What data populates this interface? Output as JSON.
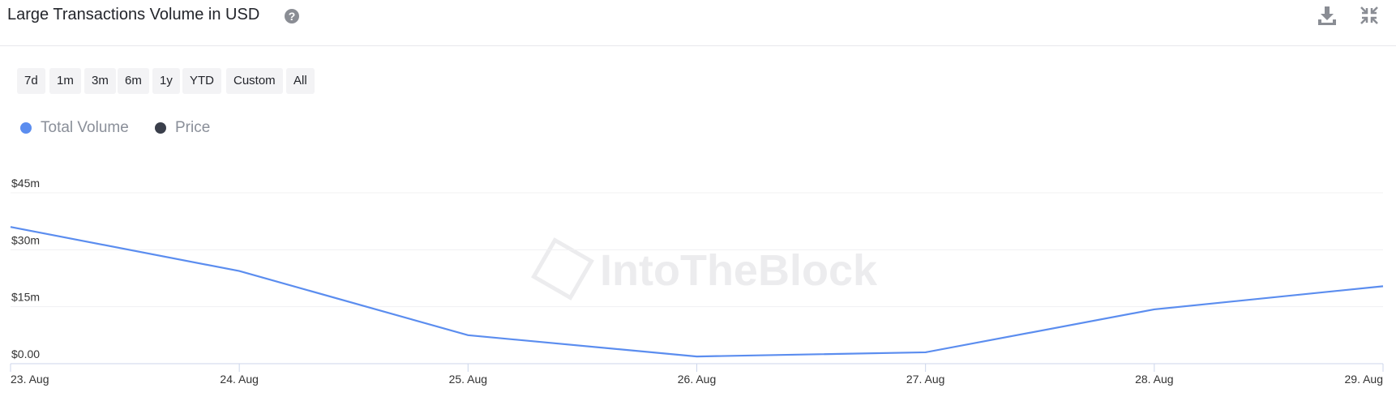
{
  "chart_data": {
    "type": "line",
    "title": "Large Transactions Volume in USD",
    "categories": [
      "23. Aug",
      "24. Aug",
      "25. Aug",
      "26. Aug",
      "27. Aug",
      "28. Aug",
      "29. Aug"
    ],
    "series": [
      {
        "name": "Total Volume",
        "color": "#5b8def",
        "values": [
          36,
          24.4,
          7.5,
          1.9,
          3.0,
          14.3,
          20.4
        ]
      },
      {
        "name": "Price",
        "color": "#3a3f4b",
        "values": [
          null,
          null,
          null,
          null,
          null,
          null,
          null
        ]
      }
    ],
    "ylim": [
      0,
      45
    ],
    "yticks": [
      {
        "value": 0,
        "label": "$0.00"
      },
      {
        "value": 15,
        "label": "$15m"
      },
      {
        "value": 30,
        "label": "$30m"
      },
      {
        "value": 45,
        "label": "$45m"
      }
    ],
    "grid": true
  },
  "toolbar": {
    "buttons": [
      "7d",
      "1m",
      "3m",
      "6m",
      "1y",
      "YTD",
      "Custom",
      "All"
    ]
  },
  "watermark": "IntoTheBlock"
}
